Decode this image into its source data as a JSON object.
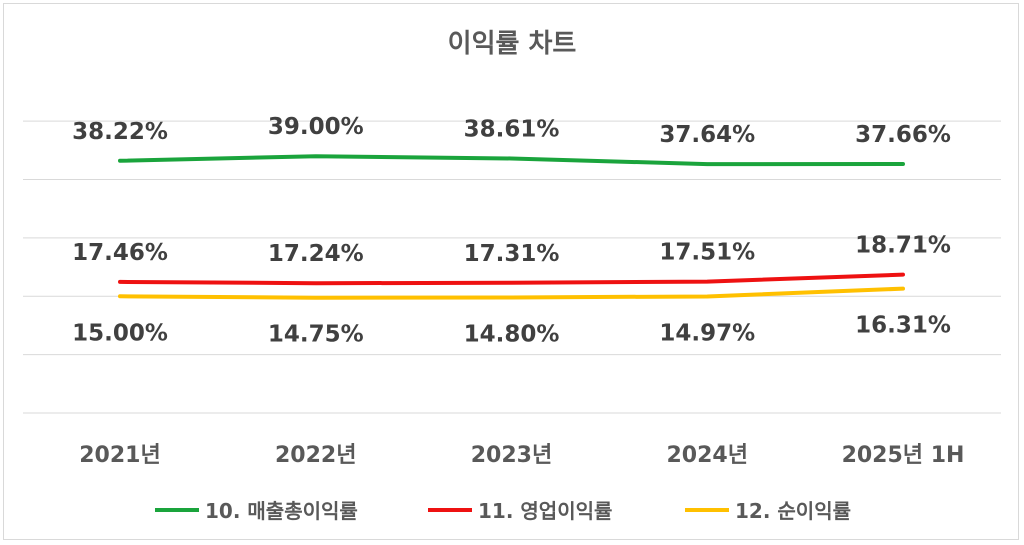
{
  "chart_data": {
    "type": "line",
    "title": "이익률 차트",
    "categories": [
      "2021년",
      "2022년",
      "2023년",
      "2024년",
      "2025년 1H"
    ],
    "series": [
      {
        "name": "10. 매출총이익률",
        "color": "#1aa43c",
        "values": [
          38.22,
          39.0,
          38.61,
          37.64,
          37.66
        ],
        "labels": [
          "38.22%",
          "39.00%",
          "38.61%",
          "37.64%",
          "37.66%"
        ],
        "label_position": "above"
      },
      {
        "name": "11. 영업이익률",
        "color": "#ee1111",
        "values": [
          17.46,
          17.24,
          17.31,
          17.51,
          18.71
        ],
        "labels": [
          "17.46%",
          "17.24%",
          "17.31%",
          "17.51%",
          "18.71%"
        ],
        "label_position": "above"
      },
      {
        "name": "12. 순이익률",
        "color": "#ffc000",
        "values": [
          15.0,
          14.75,
          14.8,
          14.97,
          16.31
        ],
        "labels": [
          "15.00%",
          "14.75%",
          "14.80%",
          "14.97%",
          "16.31%"
        ],
        "label_position": "below"
      }
    ],
    "ylim": [
      -5,
      50
    ],
    "y_axis_labels_shown": false,
    "grid": true,
    "legend_position": "bottom"
  }
}
